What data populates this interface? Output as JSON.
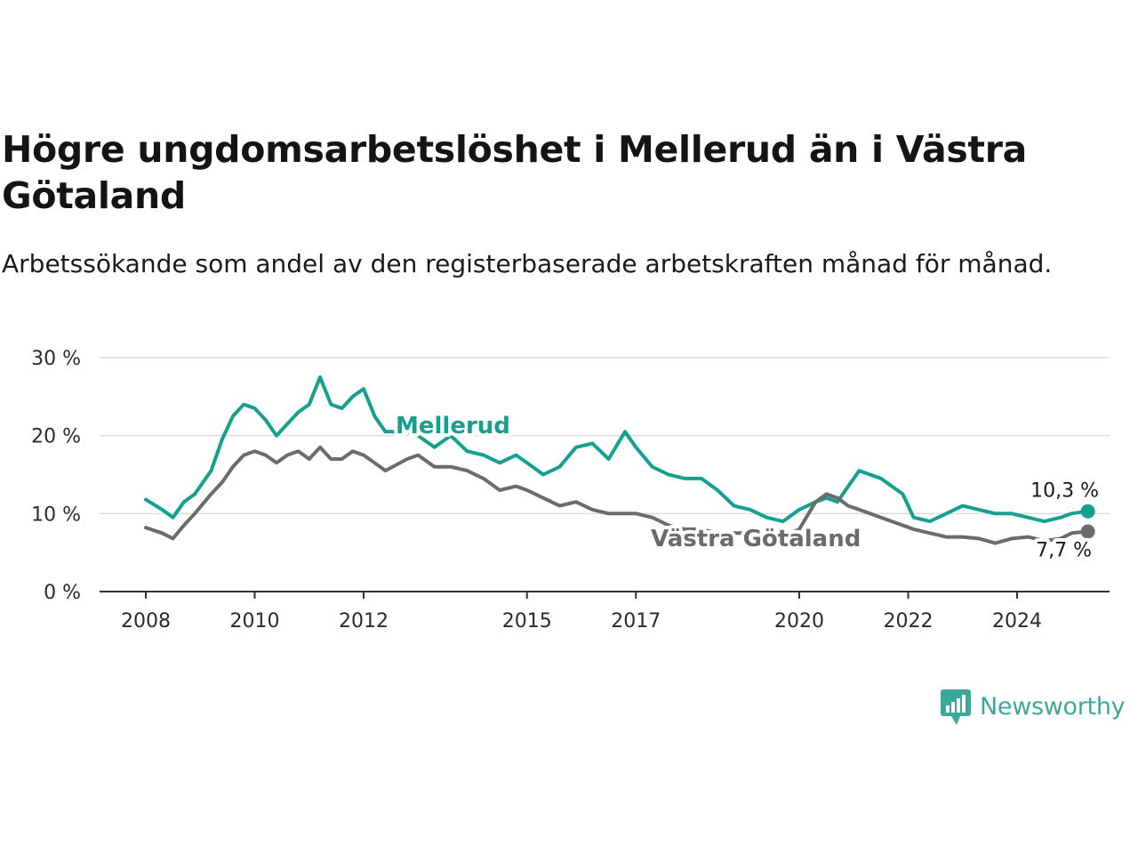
{
  "title": "Högre ungdomsarbetslöshet i Mellerud än i Västra Götaland",
  "subtitle": "Arbetssökande som andel av den registerbaserade arbetskraften månad för månad.",
  "brand": "Newsworthy",
  "colors": {
    "mellerud": "#14a08e",
    "vg": "#6b6b6b",
    "grid": "#dddddd",
    "axis": "#333333",
    "brand": "#3aa89a"
  },
  "chart_data": {
    "type": "line",
    "title": "Högre ungdomsarbetslöshet i Mellerud än i Västra Götaland",
    "ylim": [
      0,
      30
    ],
    "xlim": [
      2008,
      2025.7
    ],
    "y_ticks": [
      0,
      10,
      20,
      30
    ],
    "y_tick_labels": [
      "0 %",
      "10 %",
      "20 %",
      "30 %"
    ],
    "x_ticks": [
      2008,
      2010,
      2012,
      2015,
      2017,
      2020,
      2022,
      2024
    ],
    "x_tick_labels": [
      "2008",
      "2010",
      "2012",
      "2015",
      "2017",
      "2020",
      "2022",
      "2024"
    ],
    "grid": "horizontal",
    "series": [
      {
        "name": "Mellerud",
        "end_label": "10,3 %",
        "x": [
          2008.0,
          2008.3,
          2008.5,
          2008.7,
          2008.9,
          2009.2,
          2009.4,
          2009.6,
          2009.8,
          2010.0,
          2010.2,
          2010.4,
          2010.6,
          2010.8,
          2011.0,
          2011.2,
          2011.4,
          2011.6,
          2011.8,
          2012.0,
          2012.2,
          2012.4,
          2012.8,
          2013.0,
          2013.3,
          2013.6,
          2013.9,
          2014.2,
          2014.5,
          2014.8,
          2015.0,
          2015.3,
          2015.6,
          2015.9,
          2016.2,
          2016.5,
          2016.8,
          2017.0,
          2017.3,
          2017.6,
          2017.9,
          2018.2,
          2018.5,
          2018.8,
          2019.1,
          2019.4,
          2019.7,
          2020.0,
          2020.3,
          2020.5,
          2020.7,
          2020.9,
          2021.1,
          2021.3,
          2021.5,
          2021.7,
          2021.9,
          2022.1,
          2022.4,
          2022.7,
          2023.0,
          2023.3,
          2023.6,
          2023.9,
          2024.2,
          2024.5,
          2024.8,
          2025.0,
          2025.3
        ],
        "values": [
          11.8,
          10.5,
          9.5,
          11.5,
          12.5,
          15.5,
          19.5,
          22.5,
          24,
          23.5,
          22,
          20,
          21.5,
          23,
          24,
          27.5,
          24,
          23.5,
          25,
          26,
          22.5,
          20.5,
          20.5,
          20,
          18.5,
          20,
          18,
          17.5,
          16.5,
          17.5,
          16.5,
          15,
          16,
          18.5,
          19,
          17,
          20.5,
          18.5,
          16,
          15,
          14.5,
          14.5,
          13,
          11,
          10.5,
          9.5,
          9,
          10.5,
          11.5,
          12,
          11.5,
          13.5,
          15.5,
          15,
          14.5,
          13.5,
          12.5,
          9.5,
          9,
          10,
          11,
          10.5,
          10,
          10,
          9.5,
          9,
          9.5,
          10,
          10.3
        ]
      },
      {
        "name": "Västra Götaland",
        "end_label": "7,7 %",
        "x": [
          2008.0,
          2008.3,
          2008.5,
          2008.7,
          2008.9,
          2009.2,
          2009.4,
          2009.6,
          2009.8,
          2010.0,
          2010.2,
          2010.4,
          2010.6,
          2010.8,
          2011.0,
          2011.2,
          2011.4,
          2011.6,
          2011.8,
          2012.0,
          2012.2,
          2012.4,
          2012.8,
          2013.0,
          2013.3,
          2013.6,
          2013.9,
          2014.2,
          2014.5,
          2014.8,
          2015.0,
          2015.3,
          2015.6,
          2015.9,
          2016.2,
          2016.5,
          2016.8,
          2017.0,
          2017.3,
          2017.6,
          2017.9,
          2018.2,
          2018.5,
          2018.8,
          2019.1,
          2019.4,
          2019.7,
          2020.0,
          2020.3,
          2020.5,
          2020.7,
          2020.9,
          2021.1,
          2021.3,
          2021.5,
          2021.7,
          2021.9,
          2022.1,
          2022.4,
          2022.7,
          2023.0,
          2023.3,
          2023.6,
          2023.9,
          2024.2,
          2024.5,
          2024.8,
          2025.0,
          2025.3
        ],
        "values": [
          8.2,
          7.5,
          6.8,
          8.5,
          10,
          12.5,
          14,
          16,
          17.5,
          18,
          17.5,
          16.5,
          17.5,
          18,
          17,
          18.5,
          17,
          17,
          18,
          17.5,
          16.5,
          15.5,
          17,
          17.5,
          16,
          16,
          15.5,
          14.5,
          13,
          13.5,
          13,
          12,
          11,
          11.5,
          10.5,
          10,
          10,
          10,
          9.5,
          8.5,
          8,
          8,
          7.5,
          7.5,
          7.5,
          7,
          7,
          8,
          11.5,
          12.5,
          12,
          11,
          10.5,
          10,
          9.5,
          9,
          8.5,
          8,
          7.5,
          7,
          7,
          6.8,
          6.2,
          6.8,
          7,
          6.5,
          6.8,
          7.5,
          7.7
        ]
      }
    ]
  }
}
